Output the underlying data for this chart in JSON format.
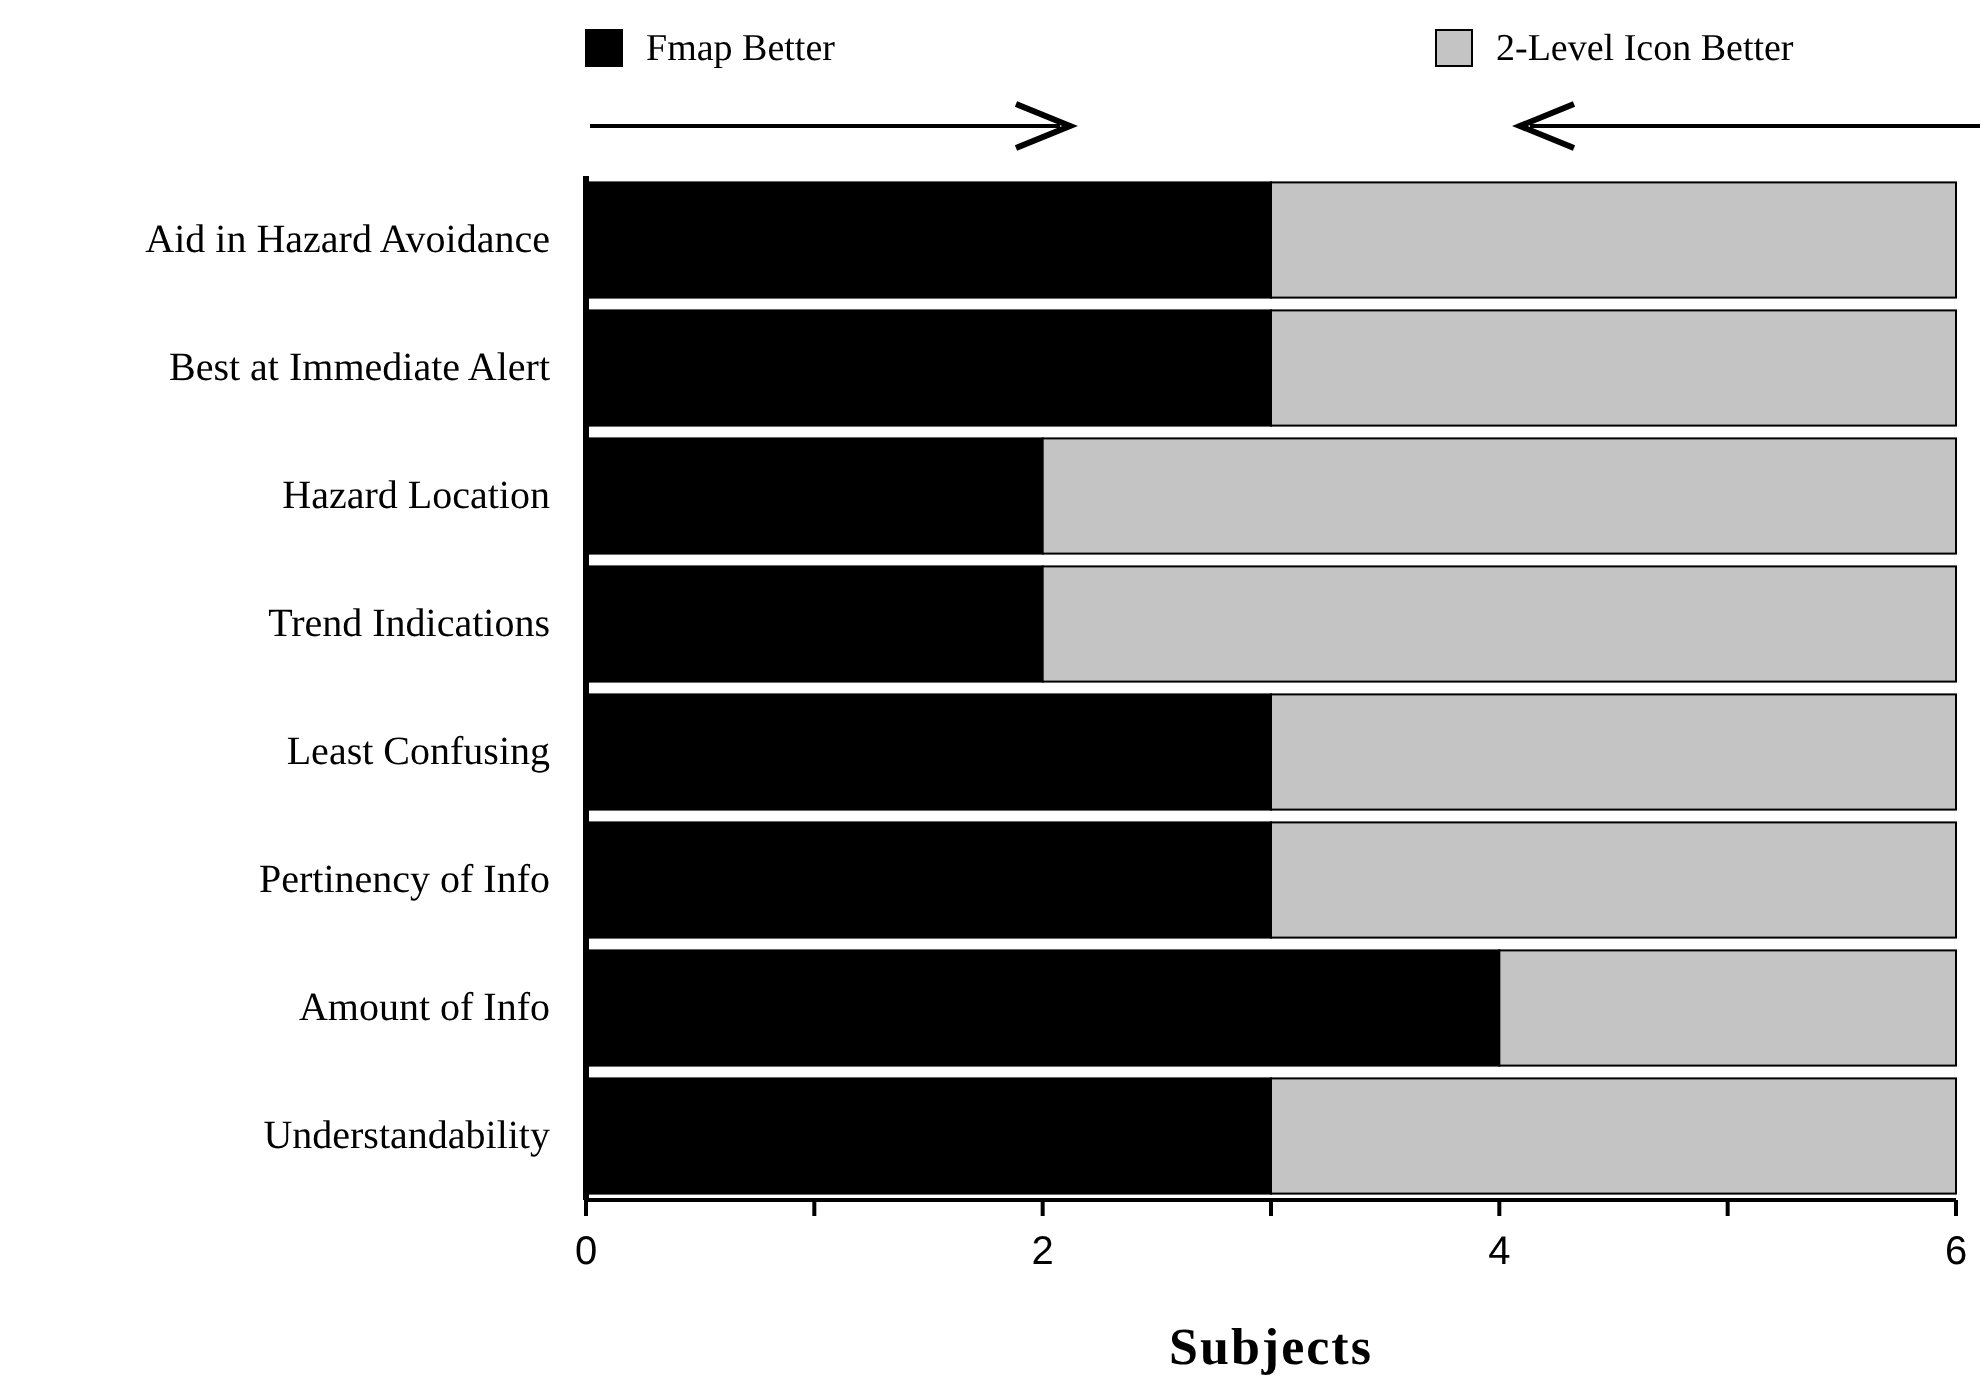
{
  "chart_data": {
    "type": "bar",
    "orientation": "horizontal",
    "stacked": true,
    "categories": [
      "Aid in Hazard Avoidance",
      "Best at Immediate Alert",
      "Hazard Location",
      "Trend Indications",
      "Least Confusing",
      "Pertinency of Info",
      "Amount of Info",
      "Understandability"
    ],
    "series": [
      {
        "name": "Fmap Better",
        "color": "#000000",
        "values": [
          3,
          3,
          2,
          2,
          3,
          3,
          4,
          3
        ]
      },
      {
        "name": "2-Level Icon Better",
        "color": "#c4c4c4",
        "values": [
          3,
          3,
          4,
          4,
          3,
          3,
          2,
          3
        ]
      }
    ],
    "xlim": [
      0,
      6
    ],
    "xticks": [
      0,
      {
        "value": 1,
        "label": null
      },
      2,
      {
        "value": 3,
        "label": null
      },
      4,
      {
        "value": 5,
        "label": null
      },
      6
    ],
    "xlabel": "Subjects",
    "legend": "top",
    "grid": false
  }
}
